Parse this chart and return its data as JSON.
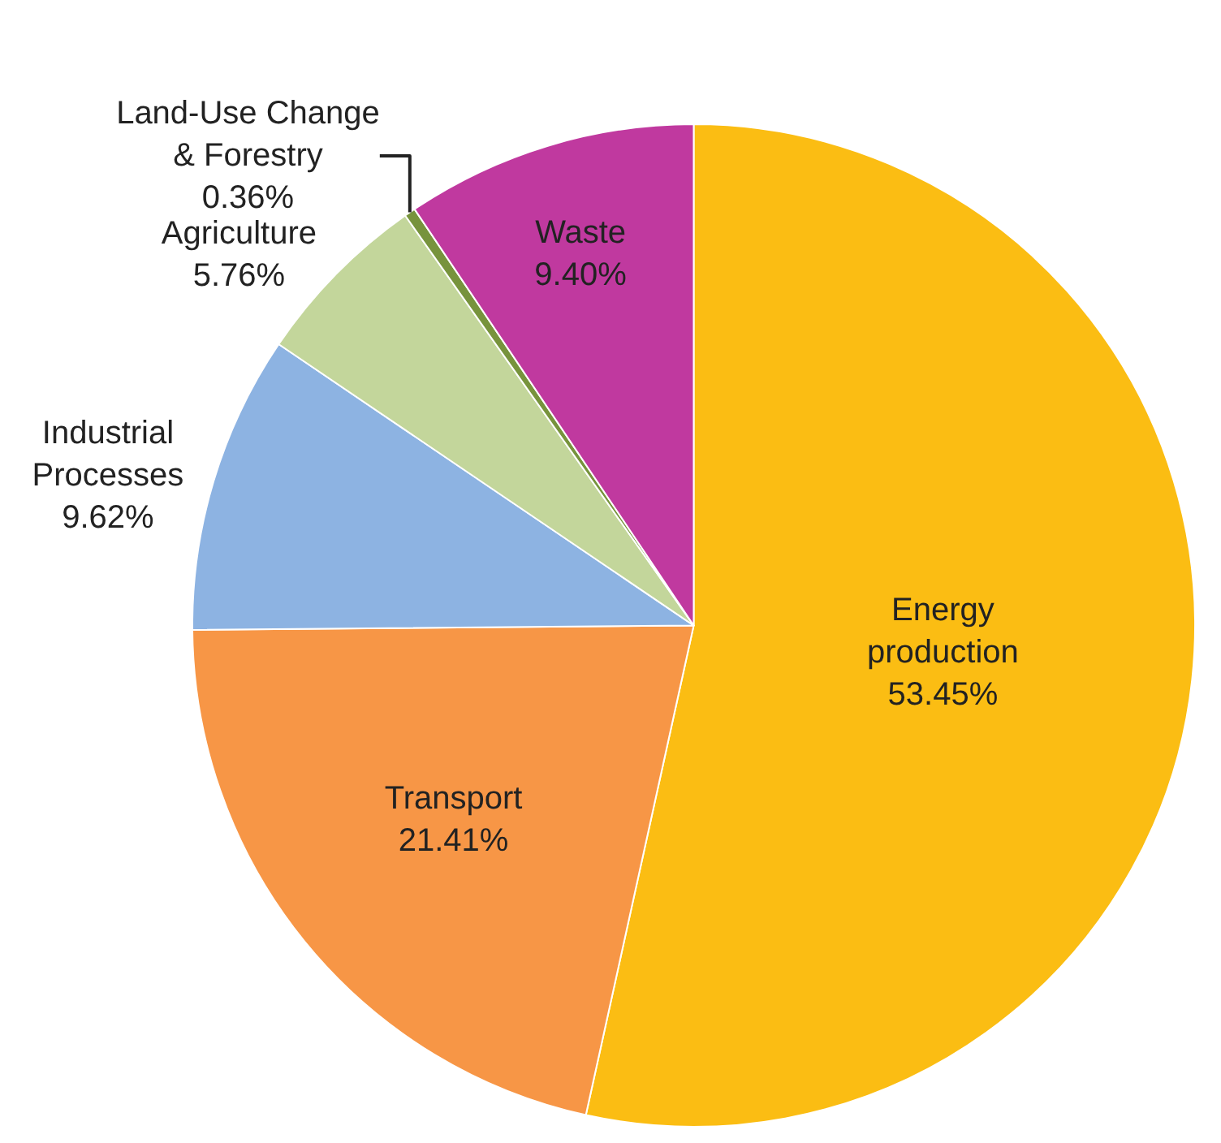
{
  "chart_data": {
    "type": "pie",
    "categories": [
      "Energy\nproduction",
      "Transport",
      "Industrial\nProcesses",
      "Agriculture",
      "Land-Use Change\n& Forestry",
      "Waste"
    ],
    "values": [
      53.45,
      21.41,
      9.62,
      5.76,
      0.36,
      9.4
    ],
    "colors": [
      "#fbbd13",
      "#f79646",
      "#8db3e2",
      "#c3d69b",
      "#77933c",
      "#c0399f"
    ],
    "value_labels": [
      "53.45%",
      "21.41%",
      "9.62%",
      "5.76%",
      "0.36%",
      "9.40%"
    ],
    "legend": false
  }
}
